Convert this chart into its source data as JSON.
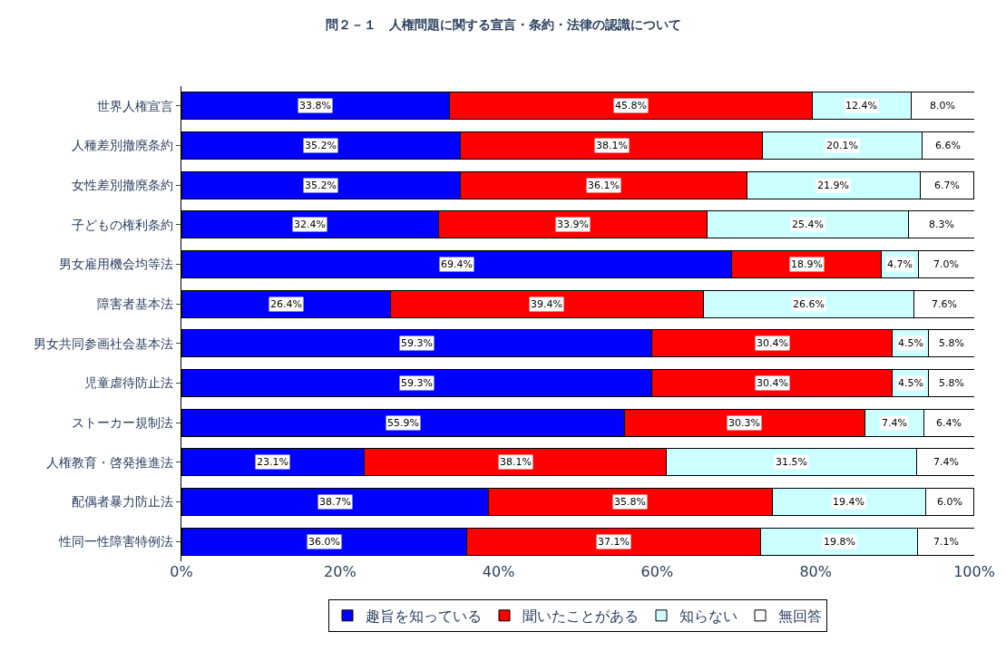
{
  "chart_data": {
    "type": "bar",
    "orientation": "horizontal",
    "stacked": true,
    "title": "問２－１　人権問題に関する宣言・条約・法律の認識について",
    "categories": [
      "世界人権宣言",
      "人種差別撤廃条約",
      "女性差別撤廃条約",
      "子どもの権利条約",
      "男女雇用機会均等法",
      "障害者基本法",
      "男女共同参画社会基本法",
      "児童虐待防止法",
      "ストーカー規制法",
      "人権教育・啓発推進法",
      "配偶者暴力防止法",
      "性同一性障害特例法"
    ],
    "series": [
      {
        "name": "趣旨を知っている",
        "color": "#0000ff",
        "values": [
          33.8,
          35.2,
          35.2,
          32.4,
          69.4,
          26.4,
          59.3,
          59.3,
          55.9,
          23.1,
          38.7,
          36.0
        ],
        "value_labels": [
          "33.8%",
          "35.2%",
          "35.2%",
          "32.4%",
          "69.4%",
          "26.4%",
          "59.3%",
          "59.3%",
          "55.9%",
          "23.1%",
          "38.7%",
          "36.0%"
        ]
      },
      {
        "name": "聞いたことがある",
        "color": "#ff0000",
        "values": [
          45.8,
          38.1,
          36.1,
          33.9,
          18.9,
          39.4,
          30.4,
          30.4,
          30.3,
          38.1,
          35.8,
          37.1
        ],
        "value_labels": [
          "45.8%",
          "38.1%",
          "36.1%",
          "33.9%",
          "18.9%",
          "39.4%",
          "30.4%",
          "30.4%",
          "30.3%",
          "38.1%",
          "35.8%",
          "37.1%"
        ]
      },
      {
        "name": "知らない",
        "color": "#ccffff",
        "values": [
          12.4,
          20.1,
          21.9,
          25.4,
          4.7,
          26.6,
          4.5,
          4.5,
          7.4,
          31.5,
          19.4,
          19.8
        ],
        "value_labels": [
          "12.4%",
          "20.1%",
          "21.9%",
          "25.4%",
          "4.7%",
          "26.6%",
          "4.5%",
          "4.5%",
          "7.4%",
          "31.5%",
          "19.4%",
          "19.8%"
        ]
      },
      {
        "name": "無回答",
        "color": "#ffffff",
        "values": [
          8.0,
          6.6,
          6.7,
          8.3,
          7.0,
          7.6,
          5.8,
          5.8,
          6.4,
          7.4,
          6.0,
          7.1
        ],
        "value_labels": [
          "8.0%",
          "6.6%",
          "6.7%",
          "8.3%",
          "7.0%",
          "7.6%",
          "5.8%",
          "5.8%",
          "6.4%",
          "7.4%",
          "6.0%",
          "7.1%"
        ]
      }
    ],
    "xlim": [
      0,
      100
    ],
    "xticks": [
      {
        "value": 0,
        "label": "0%"
      },
      {
        "value": 20,
        "label": "20%"
      },
      {
        "value": 40,
        "label": "40%"
      },
      {
        "value": 60,
        "label": "60%"
      },
      {
        "value": 80,
        "label": "80%"
      },
      {
        "value": 100,
        "label": "100%"
      }
    ],
    "legend": "bottom"
  }
}
